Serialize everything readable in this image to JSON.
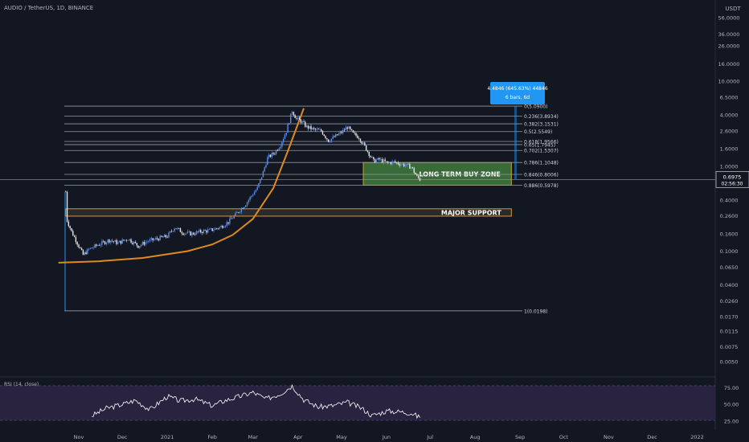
{
  "header": {
    "symbol": "AUDIO / TetherUS, 1D, BINANCE"
  },
  "colors": {
    "background": "#131722",
    "text": "#b2b5be",
    "up": "#5b8def",
    "down": "#e6e6e6",
    "fib_line": "#9598a1",
    "curve": "#e08a1e",
    "zone_fill": "#3f7a3c",
    "zone_border": "#c8a030",
    "support_fill": "#3a3a3a",
    "support_border": "#e0952c",
    "rsi_bg": "#2a2340",
    "rsi_line": "#ffffff",
    "rsi_band": "#5e4a8a",
    "measure": "#2196f3"
  },
  "chart_data": [
    {
      "type": "candlestick",
      "title": "AUDIO / TetherUS, 1D, BINANCE",
      "y_scale": "log",
      "y_unit": "USDT",
      "ylim": [
        0.004,
        90
      ],
      "y_ticks": [
        "56.0000",
        "36.0000",
        "26.0000",
        "16.0000",
        "10.0000",
        "6.5000",
        "4.0000",
        "2.6000",
        "1.6000",
        "1.0000",
        "0.6500",
        "0.4000",
        "0.2600",
        "0.1600",
        "0.1000",
        "0.0650",
        "0.0400",
        "0.0260",
        "0.0170",
        "0.0115",
        "0.0075",
        "0.0050"
      ],
      "y_tick_values": [
        56,
        36,
        26,
        16,
        10,
        6.5,
        4,
        2.6,
        1.6,
        1,
        0.65,
        0.4,
        0.26,
        0.16,
        0.1,
        0.065,
        0.04,
        0.026,
        0.017,
        0.0115,
        0.0075,
        0.005
      ],
      "x_ticks": [
        "Nov",
        "Dec",
        "2021",
        "Feb",
        "Mar",
        "Apr",
        "May",
        "Jun",
        "Jul",
        "Aug",
        "Sep",
        "Oct",
        "Nov",
        "Dec",
        "2022"
      ],
      "x_tick_dates": [
        "2020-11-01",
        "2020-12-01",
        "2021-01-01",
        "2021-02-01",
        "2021-03-01",
        "2021-04-01",
        "2021-05-01",
        "2021-06-01",
        "2021-07-01",
        "2021-08-01",
        "2021-09-01",
        "2021-10-01",
        "2021-11-01",
        "2021-12-01",
        "2022-01-01"
      ],
      "price_path": [
        [
          "2020-10-23",
          0.5
        ],
        [
          "2020-10-24",
          0.23
        ],
        [
          "2020-10-27",
          0.17
        ],
        [
          "2020-10-31",
          0.125
        ],
        [
          "2020-11-04",
          0.09
        ],
        [
          "2020-11-08",
          0.105
        ],
        [
          "2020-11-15",
          0.12
        ],
        [
          "2020-11-22",
          0.135
        ],
        [
          "2020-11-28",
          0.125
        ],
        [
          "2020-12-05",
          0.14
        ],
        [
          "2020-12-12",
          0.115
        ],
        [
          "2020-12-18",
          0.13
        ],
        [
          "2020-12-25",
          0.14
        ],
        [
          "2021-01-01",
          0.15
        ],
        [
          "2021-01-06",
          0.19
        ],
        [
          "2021-01-12",
          0.165
        ],
        [
          "2021-01-18",
          0.16
        ],
        [
          "2021-01-24",
          0.17
        ],
        [
          "2021-01-30",
          0.175
        ],
        [
          "2021-02-06",
          0.19
        ],
        [
          "2021-02-12",
          0.22
        ],
        [
          "2021-02-18",
          0.28
        ],
        [
          "2021-02-24",
          0.36
        ],
        [
          "2021-02-28",
          0.45
        ],
        [
          "2021-03-04",
          0.55
        ],
        [
          "2021-03-08",
          0.85
        ],
        [
          "2021-03-11",
          1.25
        ],
        [
          "2021-03-16",
          1.45
        ],
        [
          "2021-03-20",
          1.8
        ],
        [
          "2021-03-24",
          2.6
        ],
        [
          "2021-03-28",
          4.5
        ],
        [
          "2021-03-31",
          3.6
        ],
        [
          "2021-04-03",
          3.4
        ],
        [
          "2021-04-07",
          2.9
        ],
        [
          "2021-04-12",
          2.7
        ],
        [
          "2021-04-17",
          2.6
        ],
        [
          "2021-04-22",
          2.0
        ],
        [
          "2021-04-26",
          2.2
        ],
        [
          "2021-05-01",
          2.5
        ],
        [
          "2021-05-05",
          2.9
        ],
        [
          "2021-05-09",
          2.4
        ],
        [
          "2021-05-13",
          2.2
        ],
        [
          "2021-05-17",
          1.7
        ],
        [
          "2021-05-20",
          1.4
        ],
        [
          "2021-05-23",
          1.15
        ],
        [
          "2021-05-27",
          1.2
        ],
        [
          "2021-06-01",
          1.1
        ],
        [
          "2021-06-06",
          1.12
        ],
        [
          "2021-06-12",
          1.05
        ],
        [
          "2021-06-18",
          0.98
        ],
        [
          "2021-06-22",
          0.75
        ],
        [
          "2021-06-24",
          0.6975
        ]
      ],
      "last_price": "0.6975",
      "countdown": "02:56:30",
      "fibonacci": [
        {
          "label": "0(5.0900)",
          "value": 5.09
        },
        {
          "label": "0.236(3.8934)",
          "value": 3.8934
        },
        {
          "label": "0.382(3.1531)",
          "value": 3.1531
        },
        {
          "label": "0.5(2.5549)",
          "value": 2.5549
        },
        {
          "label": "0.618(1.9566)",
          "value": 1.9566
        },
        {
          "label": "0.65(1.7945)",
          "value": 1.7945
        },
        {
          "label": "0.702(1.5307)",
          "value": 1.5307
        },
        {
          "label": "0.786(1.1048)",
          "value": 1.1048
        },
        {
          "label": "0.846(0.8006)",
          "value": 0.8006
        },
        {
          "label": "0.886(0.5978)",
          "value": 0.5978
        },
        {
          "label": "1(0.0198)",
          "value": 0.0198
        }
      ],
      "zones": [
        {
          "label": "LONG TERM BUY ZONE",
          "low": 0.5978,
          "high": 1.1048,
          "from": "2021-05-16",
          "to": "2021-08-26"
        },
        {
          "label": "MAJOR SUPPORT",
          "low": 0.258,
          "high": 0.315,
          "from": "2020-10-23",
          "to": "2021-08-26"
        }
      ],
      "measure_box": {
        "line1": "4.4846 (645.63%) 44846",
        "line2": "6 bars, 6d"
      },
      "curve": [
        [
          "2020-10-18",
          0.073
        ],
        [
          "2020-11-15",
          0.076
        ],
        [
          "2020-12-15",
          0.083
        ],
        [
          "2021-01-15",
          0.1
        ],
        [
          "2021-02-01",
          0.12
        ],
        [
          "2021-02-15",
          0.155
        ],
        [
          "2021-03-01",
          0.24
        ],
        [
          "2021-03-15",
          0.55
        ],
        [
          "2021-03-25",
          1.5
        ],
        [
          "2021-04-05",
          4.8
        ]
      ]
    },
    {
      "type": "line",
      "title": "RSI (14, close)",
      "ylim": [
        14,
        90
      ],
      "y_ticks": [
        "75.00",
        "50.00",
        "25.00"
      ],
      "y_tick_values": [
        75,
        50,
        25
      ],
      "bands": [
        30,
        70
      ],
      "x": [
        "2020-11-10",
        "2020-11-20",
        "2020-12-01",
        "2020-12-10",
        "2020-12-20",
        "2021-01-01",
        "2021-01-10",
        "2021-01-20",
        "2021-02-01",
        "2021-02-10",
        "2021-02-20",
        "2021-03-01",
        "2021-03-10",
        "2021-03-20",
        "2021-03-28",
        "2021-04-05",
        "2021-04-15",
        "2021-04-25",
        "2021-05-05",
        "2021-05-15",
        "2021-05-22",
        "2021-06-01",
        "2021-06-10",
        "2021-06-18",
        "2021-06-24"
      ],
      "values": [
        33,
        44,
        50,
        56,
        42,
        62,
        55,
        58,
        48,
        56,
        62,
        68,
        58,
        66,
        78,
        57,
        46,
        48,
        53,
        44,
        33,
        40,
        39,
        37,
        30
      ]
    }
  ]
}
